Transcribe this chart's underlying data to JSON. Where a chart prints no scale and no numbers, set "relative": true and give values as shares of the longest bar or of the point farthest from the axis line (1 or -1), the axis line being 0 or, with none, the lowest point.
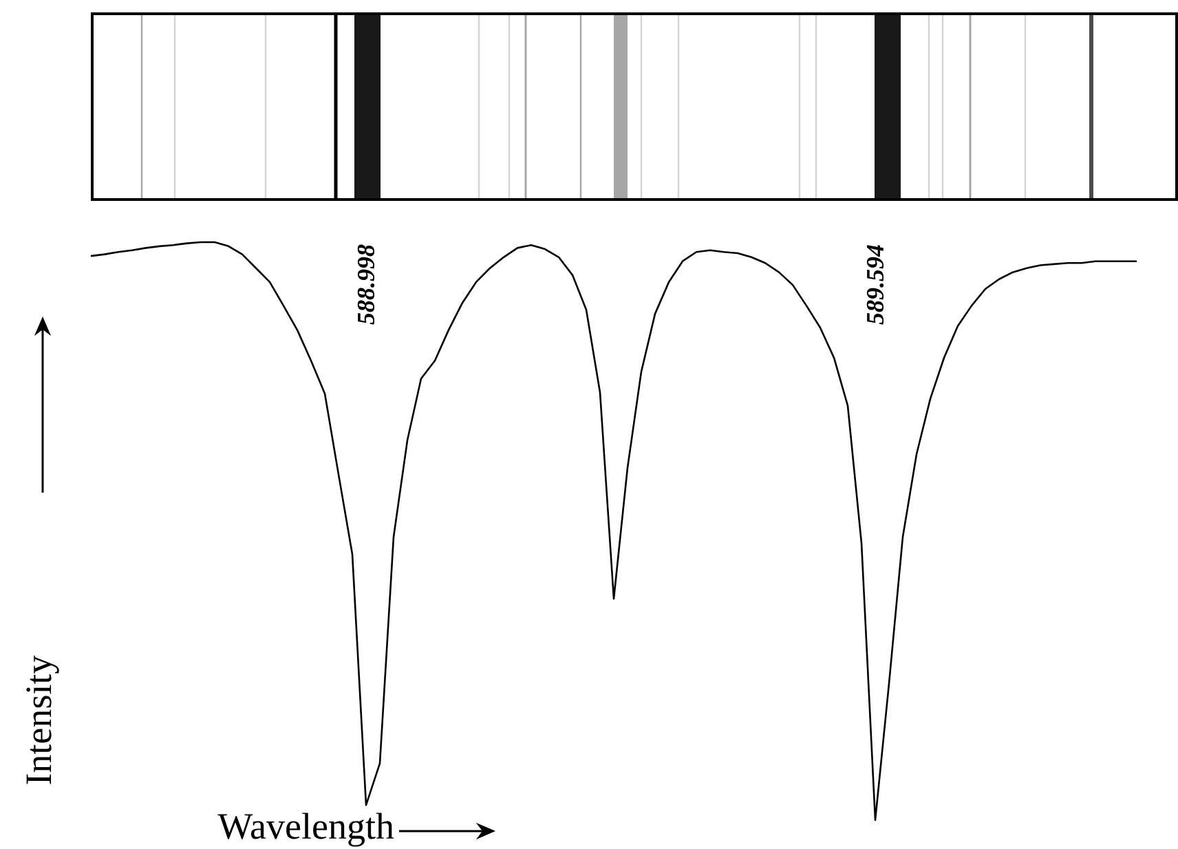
{
  "chart_data": {
    "type": "line",
    "relative": true,
    "xlabel": "Wavelength",
    "ylabel": "Intensity",
    "color": "#000000",
    "categories": [
      null,
      null,
      null,
      null,
      null,
      null,
      null,
      null,
      null,
      null,
      null,
      null,
      null,
      null,
      null,
      null,
      null,
      null,
      null,
      null,
      null,
      null,
      null,
      null,
      null,
      null,
      null,
      null,
      null,
      null,
      null,
      null,
      null,
      null,
      null,
      null,
      null,
      null,
      null,
      null,
      null,
      null,
      null,
      null,
      null,
      null,
      null,
      null,
      null,
      null,
      null,
      null,
      null,
      null,
      null,
      null,
      null,
      null,
      null,
      null,
      null,
      null,
      null,
      null,
      null,
      null,
      null,
      null,
      null,
      null,
      null,
      null,
      null,
      null,
      null,
      null,
      null
    ],
    "values": [
      0.976,
      0.979,
      0.983,
      0.986,
      0.99,
      0.993,
      0.995,
      0.998,
      1,
      1,
      0.993,
      0.979,
      0.955,
      0.931,
      0.89,
      0.848,
      0.795,
      0.738,
      0.598,
      0.46,
      0.026,
      0.098,
      0.49,
      0.657,
      0.764,
      0.795,
      0.848,
      0.895,
      0.931,
      0.955,
      0.974,
      0.99,
      0.995,
      0.988,
      0.974,
      0.943,
      0.883,
      0.74,
      0.383,
      0.61,
      0.776,
      0.876,
      0.931,
      0.967,
      0.983,
      0.986,
      0.983,
      0.981,
      0.974,
      0.964,
      0.948,
      0.926,
      0.89,
      0.852,
      0.8,
      0.717,
      0.479,
      0,
      0.236,
      0.49,
      0.633,
      0.729,
      0.8,
      0.855,
      0.89,
      0.919,
      0.936,
      0.948,
      0.955,
      0.96,
      0.962,
      0.964,
      0.964,
      0.967,
      0.967,
      0.967,
      0.967
    ],
    "annotations": [
      "588.998",
      "589.594"
    ]
  }
}
